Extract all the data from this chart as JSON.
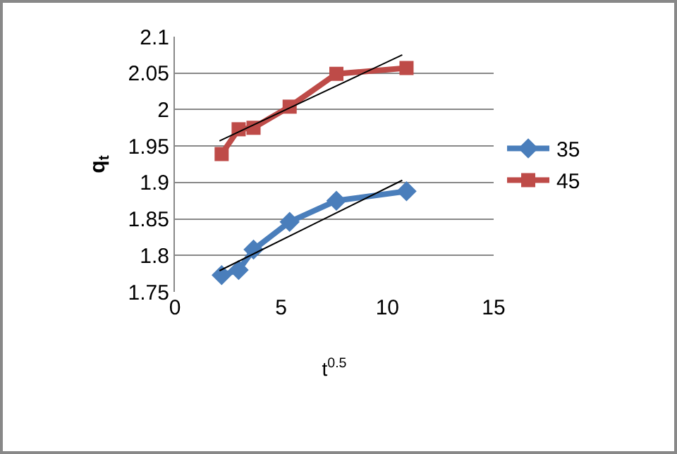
{
  "chart_data": {
    "type": "line",
    "xlabel": "t$^{0.5}$",
    "ylabel": "q$_{t}$",
    "x": [
      2.2,
      3.0,
      3.7,
      5.4,
      7.6,
      10.9
    ],
    "series": [
      {
        "name": "35",
        "color": "#4a7ebb",
        "marker": "diamond",
        "values": [
          1.773,
          1.78,
          1.808,
          1.846,
          1.875,
          1.888
        ]
      },
      {
        "name": "45",
        "color": "#be4b48",
        "marker": "square",
        "values": [
          1.939,
          1.973,
          1.975,
          2.004,
          2.049,
          2.057
        ]
      },
      {
        "type": "line",
        "color": "#000000",
        "marker": "none",
        "x": [
          2.1,
          6.4,
          10.7
        ],
        "values": [
          1.779,
          1.841,
          1.903
        ]
      },
      {
        "type": "line",
        "color": "#000000",
        "marker": "none",
        "x": [
          2.1,
          6.4,
          10.7
        ],
        "values": [
          1.957,
          2.016,
          2.075
        ]
      }
    ],
    "xlim": [
      0,
      15
    ],
    "xticks": [
      0,
      5,
      10,
      15
    ],
    "ylim": [
      1.75,
      2.1
    ],
    "yticks": [
      1.75,
      1.8,
      1.85,
      1.9,
      1.95,
      2,
      2.05,
      2.1
    ],
    "grid": "y",
    "legend": "right"
  }
}
